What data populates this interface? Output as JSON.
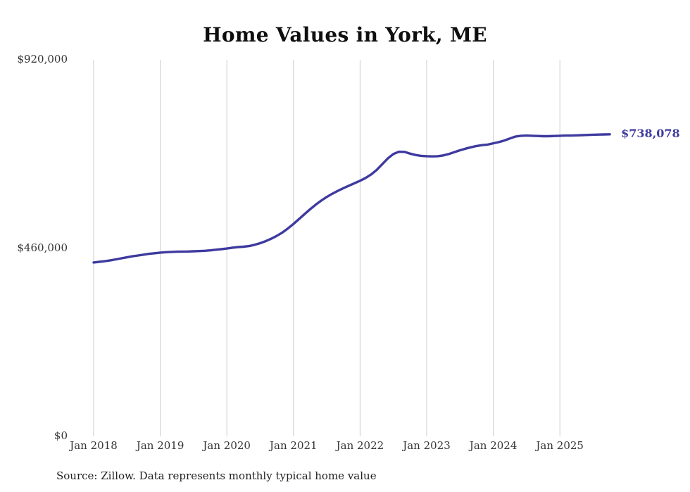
{
  "chart_data": {
    "type": "line",
    "title": "Home Values in York, ME",
    "source": "Source: Zillow. Data represents monthly typical home value",
    "end_label": "$738,078",
    "latest_value": 738078,
    "ylabel": "",
    "xlabel": "",
    "ylim": [
      0,
      920000
    ],
    "grid": "vertical",
    "legend": "none",
    "colors": {
      "line": "#3e3a9f",
      "grid": "#cccccc",
      "text": "#333333"
    },
    "y_ticks": [
      {
        "label": "$920,000",
        "value": 920000
      },
      {
        "label": "$460,000",
        "value": 460000
      },
      {
        "label": "$0",
        "value": 0
      }
    ],
    "x_tick_labels": [
      "Jan 2018",
      "Jan 2019",
      "Jan 2020",
      "Jan 2021",
      "Jan 2022",
      "Jan 2023",
      "Jan 2024",
      "Jan 2025"
    ],
    "x_tick_indices": [
      0,
      12,
      24,
      36,
      48,
      60,
      72,
      84
    ],
    "x": [
      "2018-01",
      "2018-02",
      "2018-03",
      "2018-04",
      "2018-05",
      "2018-06",
      "2018-07",
      "2018-08",
      "2018-09",
      "2018-10",
      "2018-11",
      "2018-12",
      "2019-01",
      "2019-02",
      "2019-03",
      "2019-04",
      "2019-05",
      "2019-06",
      "2019-07",
      "2019-08",
      "2019-09",
      "2019-10",
      "2019-11",
      "2019-12",
      "2020-01",
      "2020-02",
      "2020-03",
      "2020-04",
      "2020-05",
      "2020-06",
      "2020-07",
      "2020-08",
      "2020-09",
      "2020-10",
      "2020-11",
      "2020-12",
      "2021-01",
      "2021-02",
      "2021-03",
      "2021-04",
      "2021-05",
      "2021-06",
      "2021-07",
      "2021-08",
      "2021-09",
      "2021-10",
      "2021-11",
      "2021-12",
      "2022-01",
      "2022-02",
      "2022-03",
      "2022-04",
      "2022-05",
      "2022-06",
      "2022-07",
      "2022-08",
      "2022-09",
      "2022-10",
      "2022-11",
      "2022-12",
      "2023-01",
      "2023-02",
      "2023-03",
      "2023-04",
      "2023-05",
      "2023-06",
      "2023-07",
      "2023-08",
      "2023-09",
      "2023-10",
      "2023-11",
      "2023-12",
      "2024-01",
      "2024-02",
      "2024-03",
      "2024-04",
      "2024-05",
      "2024-06",
      "2024-07",
      "2024-08",
      "2024-09",
      "2024-10",
      "2024-11",
      "2024-12",
      "2025-01",
      "2025-02",
      "2025-03",
      "2025-04",
      "2025-05",
      "2025-06",
      "2025-07",
      "2025-08",
      "2025-09",
      "2025-10"
    ],
    "values": [
      425000,
      426500,
      428000,
      430000,
      432500,
      435000,
      437500,
      440000,
      442000,
      444000,
      446000,
      447500,
      449000,
      450000,
      450800,
      451200,
      451500,
      451800,
      452200,
      452800,
      453500,
      454500,
      456000,
      457500,
      459000,
      461000,
      462500,
      463500,
      465000,
      468000,
      472000,
      477000,
      483000,
      490000,
      498000,
      508000,
      519000,
      531000,
      543000,
      555000,
      566000,
      576000,
      585000,
      593000,
      600000,
      606500,
      612500,
      618500,
      624500,
      631500,
      640000,
      651000,
      665000,
      679000,
      690000,
      695500,
      695000,
      691000,
      687500,
      685500,
      684500,
      684000,
      684500,
      686500,
      690000,
      694500,
      699000,
      703000,
      706500,
      709500,
      711500,
      713000,
      716000,
      719000,
      723000,
      728000,
      732500,
      734500,
      735000,
      734500,
      734000,
      733500,
      733500,
      734000,
      734500,
      735000,
      735000,
      735500,
      736000,
      736500,
      737000,
      737300,
      737700,
      738078
    ]
  }
}
